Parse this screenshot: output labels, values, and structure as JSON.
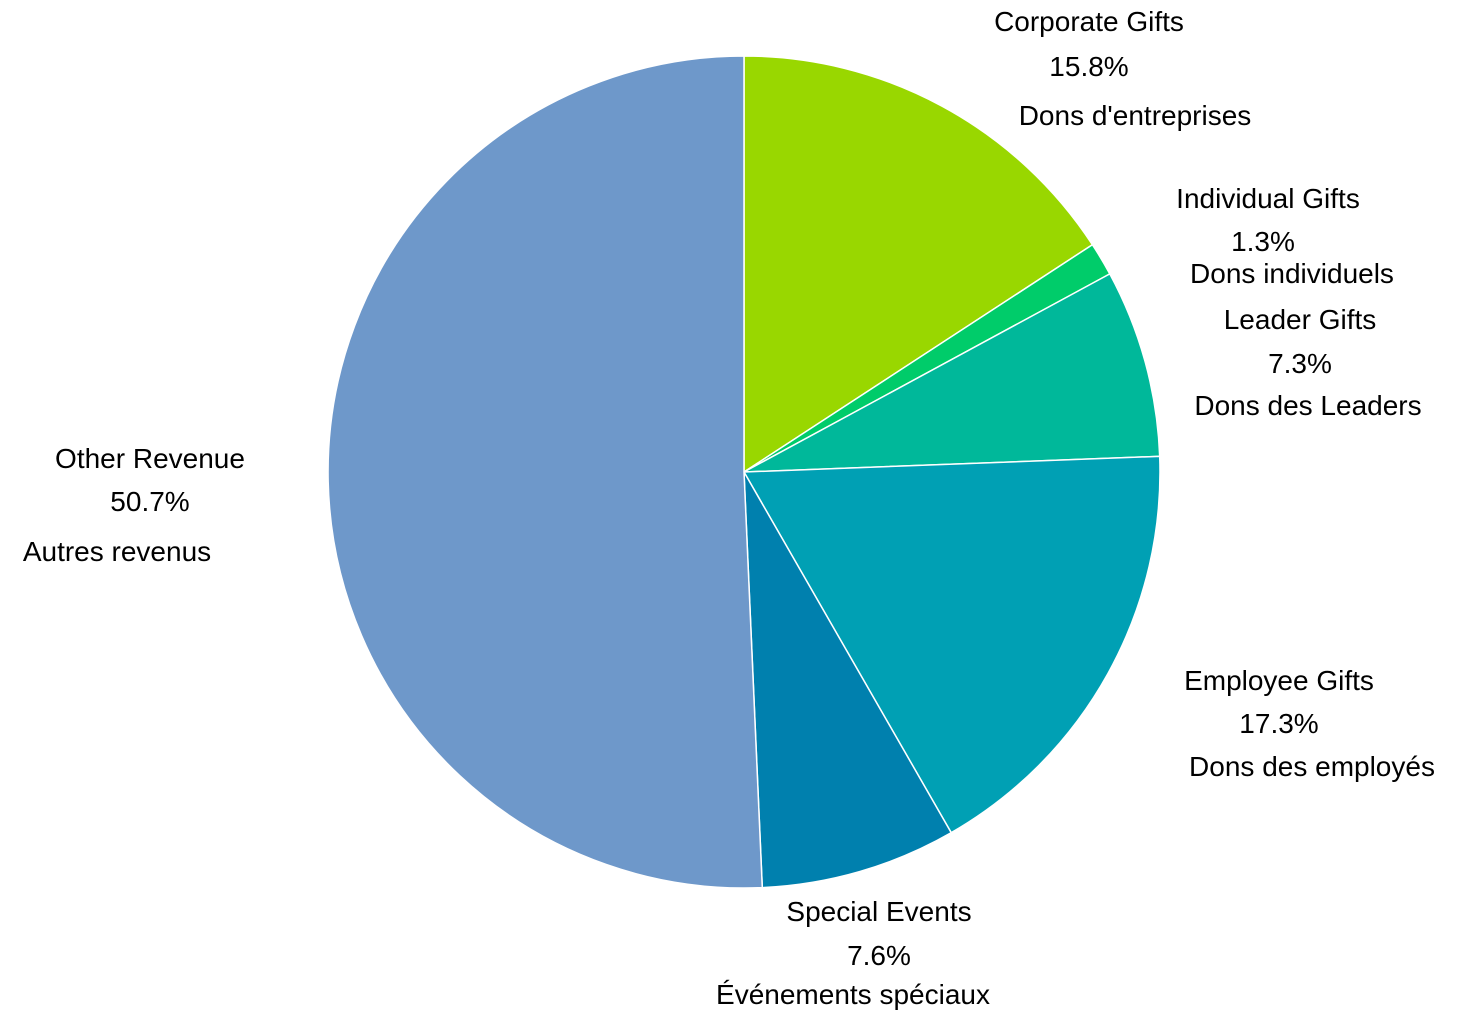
{
  "chart_data": {
    "type": "pie",
    "title": "",
    "start_angle_deg": 0,
    "direction": "clockwise",
    "slices": [
      {
        "label": "Corporate Gifts",
        "percent_label": "15.8%",
        "label_fr": "Dons d'entreprises",
        "value": 15.8,
        "color": "#99D700"
      },
      {
        "label": "Individual Gifts",
        "percent_label": "1.3%",
        "label_fr": "Dons individuels",
        "value": 1.3,
        "color": "#00CC6A"
      },
      {
        "label": "Leader Gifts",
        "percent_label": "7.3%",
        "label_fr": "Dons des Leaders",
        "value": 7.3,
        "color": "#00B89A"
      },
      {
        "label": "Employee Gifts",
        "percent_label": "17.3%",
        "label_fr": "Dons des employés",
        "value": 17.3,
        "color": "#00A0B4"
      },
      {
        "label": "Special Events",
        "percent_label": "7.6%",
        "label_fr": "Événements spéciaux",
        "value": 7.6,
        "color": "#0080AE"
      },
      {
        "label": "Other Revenue",
        "percent_label": "50.7%",
        "label_fr": "Autres revenus",
        "value": 50.7,
        "color": "#6E98CA"
      }
    ]
  }
}
